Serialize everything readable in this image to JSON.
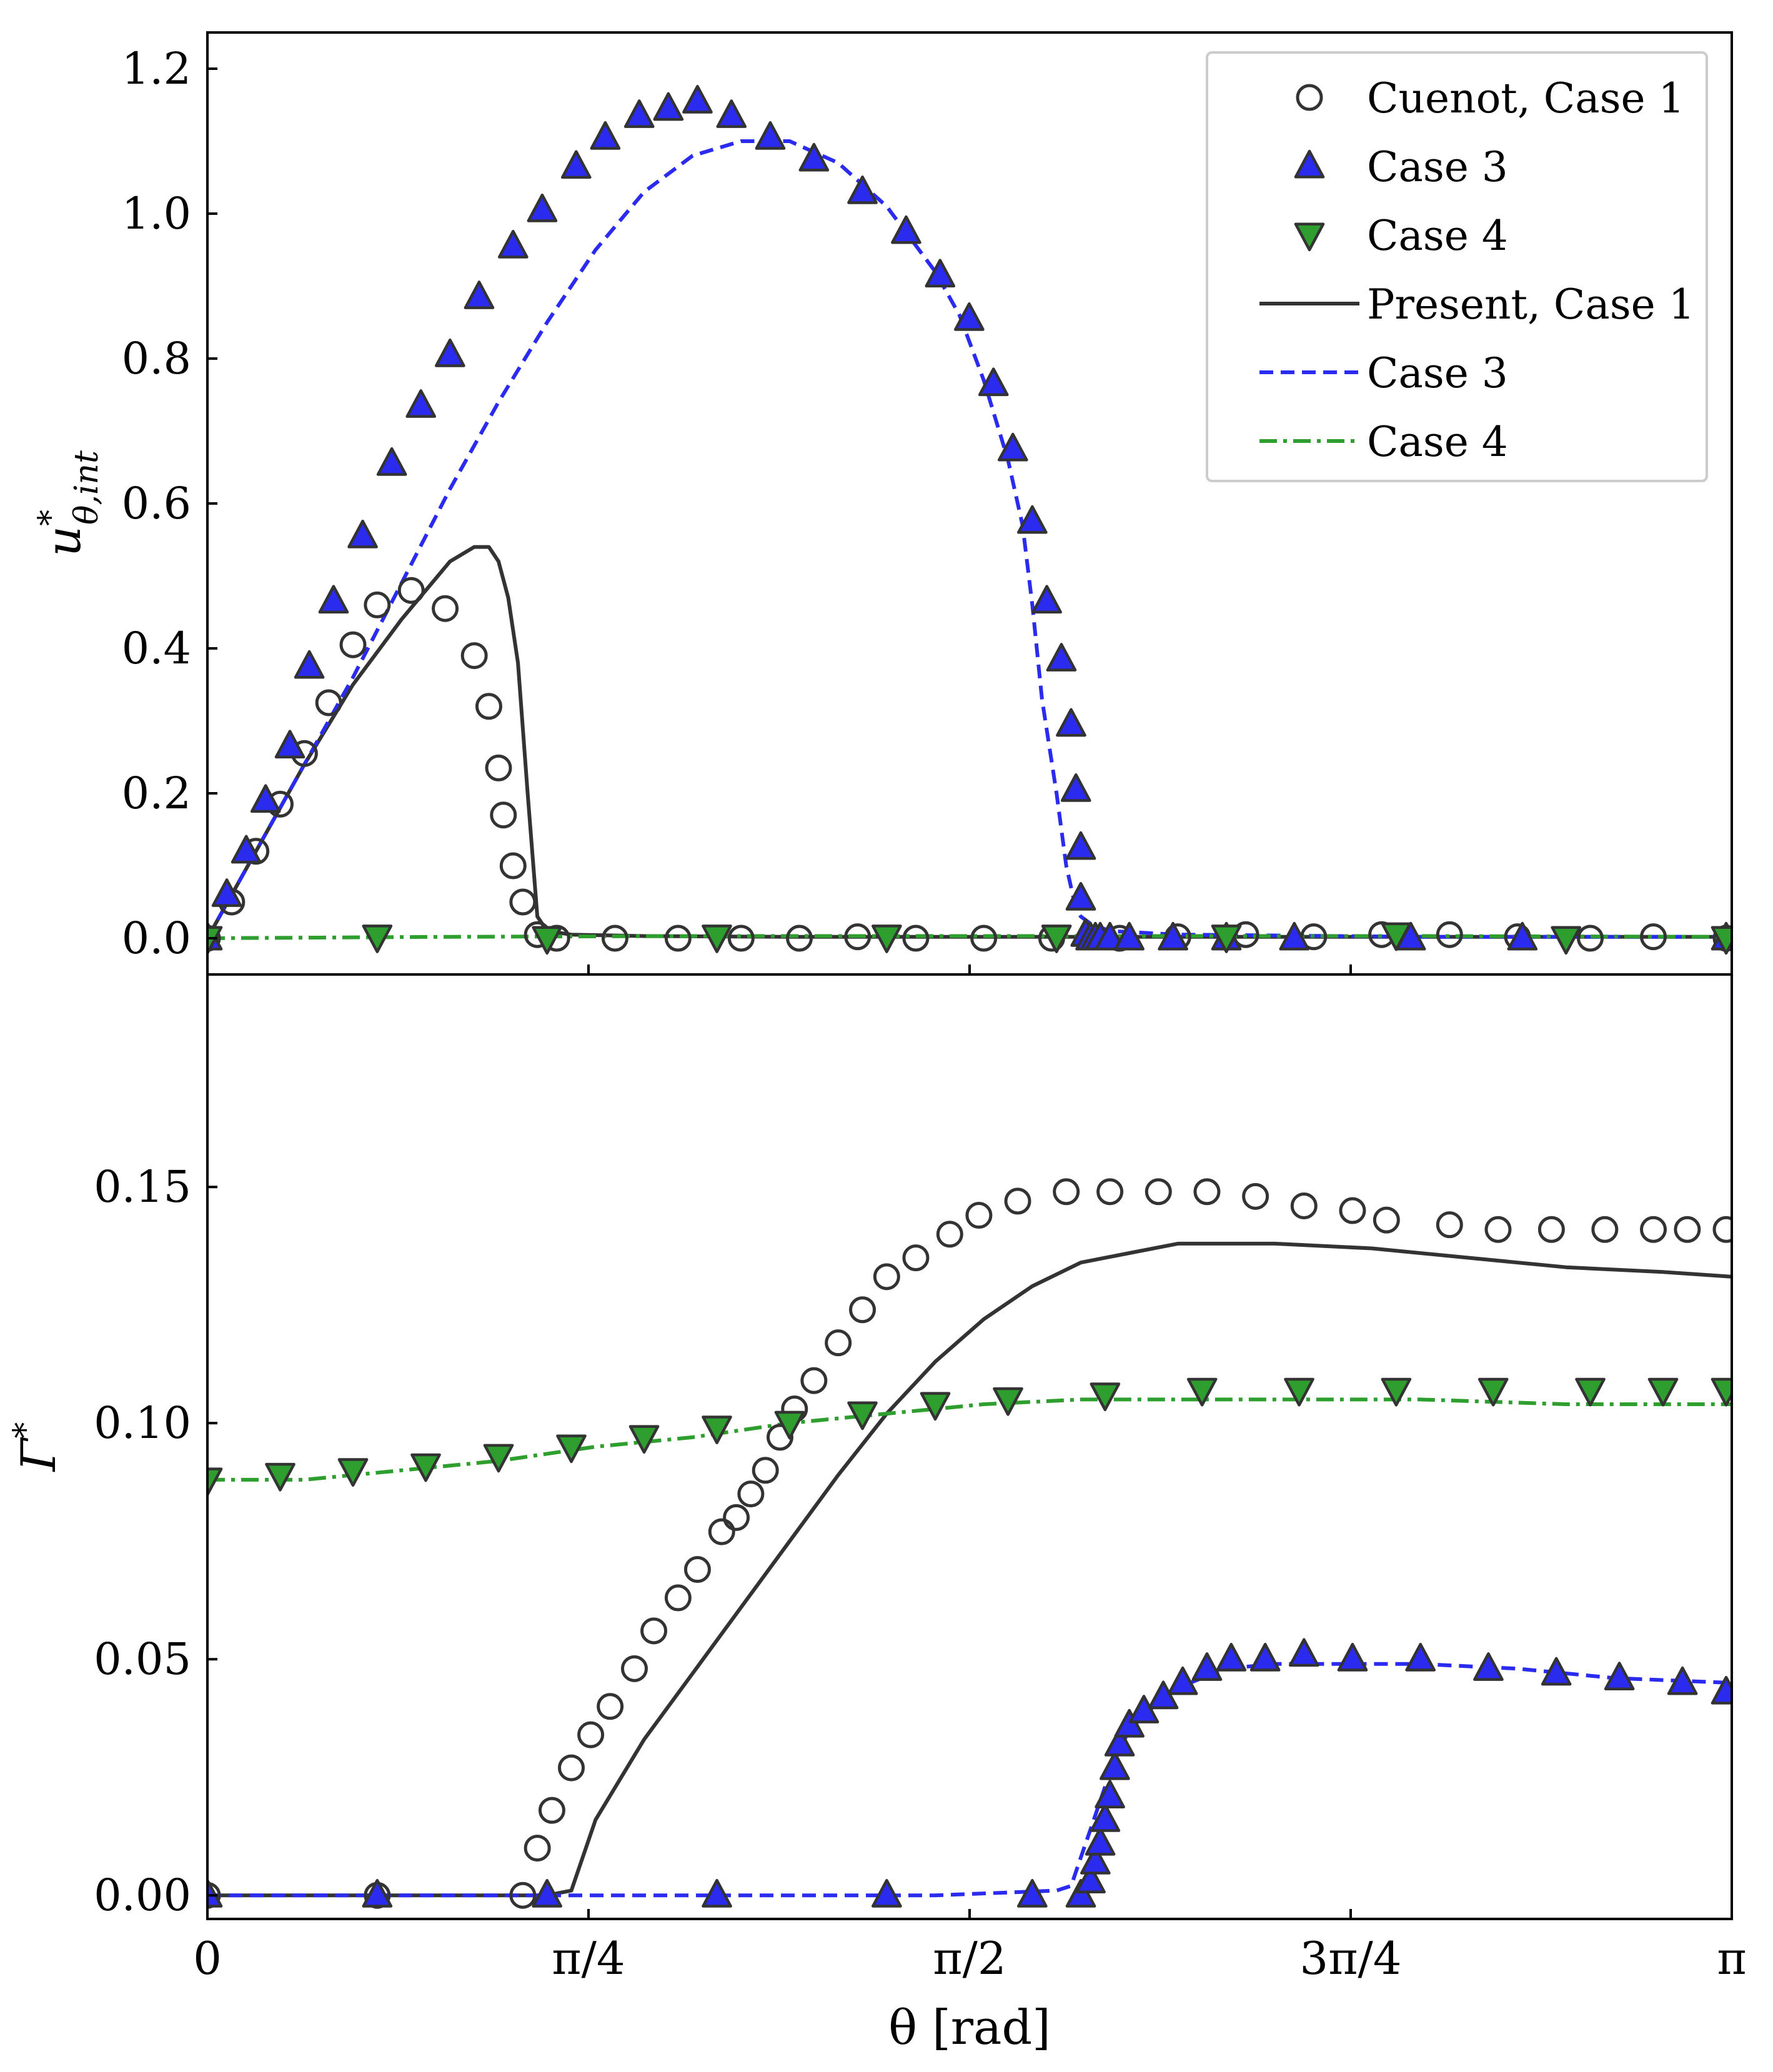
{
  "chart_data": [
    {
      "type": "line",
      "panel": "top",
      "ylabel": "u*_{θ,int}",
      "ylabel_base": "u",
      "ylabel_sup": "*",
      "ylabel_sub": "θ,int",
      "xlim": [
        0,
        3.14159
      ],
      "ylim": [
        -0.05,
        1.25
      ],
      "yticks": [
        0.0,
        0.2,
        0.4,
        0.6,
        0.8,
        1.0,
        1.2
      ],
      "ytick_labels": [
        "0.0",
        "0.2",
        "0.4",
        "0.6",
        "0.8",
        "1.0",
        "1.2"
      ],
      "legend_position": "top-right",
      "legend": [
        {
          "label": "Cuenot, Case 1",
          "marker": "circle"
        },
        {
          "label": "Case 3",
          "marker": "triangle-up"
        },
        {
          "label": "Case 4",
          "marker": "triangle-down"
        },
        {
          "label": "Present, Case 1",
          "line": "solid"
        },
        {
          "label": "Case 3",
          "line": "dashed"
        },
        {
          "label": "Case 4",
          "line": "dashdot"
        }
      ],
      "series": [
        {
          "name": "Cuenot, Case 1",
          "kind": "markers",
          "marker": "circle",
          "x": [
            0.0,
            0.05,
            0.1,
            0.15,
            0.2,
            0.25,
            0.3,
            0.35,
            0.42,
            0.49,
            0.55,
            0.58,
            0.6,
            0.61,
            0.63,
            0.65,
            0.68,
            0.72,
            0.84,
            0.97,
            1.1,
            1.22,
            1.34,
            1.46,
            1.6,
            1.74,
            1.88,
            2.0,
            2.14,
            2.28,
            2.42,
            2.56,
            2.7,
            2.85,
            2.98,
            3.13
          ],
          "y": [
            0.0,
            0.05,
            0.12,
            0.185,
            0.255,
            0.325,
            0.405,
            0.46,
            0.48,
            0.455,
            0.39,
            0.32,
            0.235,
            0.17,
            0.1,
            0.05,
            0.005,
            0.0,
            0.0,
            0.0,
            0.0,
            0.0,
            0.002,
            0.0,
            0.0,
            0.0,
            0.0,
            0.002,
            0.005,
            0.002,
            0.005,
            0.005,
            0.002,
            0.0,
            0.002,
            0.0
          ]
        },
        {
          "name": "Case 3",
          "kind": "markers",
          "marker": "triangle-up",
          "x": [
            0.0,
            0.04,
            0.08,
            0.12,
            0.17,
            0.21,
            0.26,
            0.32,
            0.38,
            0.44,
            0.5,
            0.56,
            0.63,
            0.69,
            0.76,
            0.82,
            0.89,
            0.95,
            1.01,
            1.08,
            1.16,
            1.25,
            1.35,
            1.44,
            1.51,
            1.57,
            1.62,
            1.66,
            1.7,
            1.73,
            1.76,
            1.78,
            1.79,
            1.8,
            1.8,
            1.81,
            1.82,
            1.83,
            1.84,
            1.86,
            1.9,
            1.99,
            2.1,
            2.24,
            2.48,
            2.71,
            3.13
          ],
          "y": [
            0.0,
            0.06,
            0.12,
            0.19,
            0.265,
            0.375,
            0.465,
            0.555,
            0.655,
            0.735,
            0.805,
            0.885,
            0.955,
            1.005,
            1.065,
            1.105,
            1.135,
            1.145,
            1.155,
            1.135,
            1.105,
            1.075,
            1.03,
            0.975,
            0.915,
            0.855,
            0.765,
            0.675,
            0.575,
            0.465,
            0.385,
            0.295,
            0.205,
            0.125,
            0.055,
            0.005,
            0.0,
            0.0,
            0.0,
            0.0,
            0.0,
            0.0,
            0.0,
            0.0,
            0.0,
            0.0,
            0.0
          ]
        },
        {
          "name": "Case 4",
          "kind": "markers",
          "marker": "triangle-down",
          "x": [
            0.0,
            0.35,
            0.7,
            1.05,
            1.4,
            1.75,
            2.1,
            2.45,
            2.8,
            3.13
          ],
          "y": [
            0.0,
            0.002,
            0.0,
            0.002,
            0.002,
            0.002,
            0.002,
            0.005,
            0.0,
            0.0
          ]
        },
        {
          "name": "Present, Case 1",
          "kind": "line",
          "line": "solid",
          "x": [
            0.0,
            0.1,
            0.2,
            0.3,
            0.4,
            0.5,
            0.55,
            0.58,
            0.6,
            0.62,
            0.64,
            0.66,
            0.68,
            0.7,
            0.75,
            0.9,
            1.2,
            1.5,
            1.8,
            2.2,
            2.6,
            3.14
          ],
          "y": [
            0.0,
            0.12,
            0.24,
            0.35,
            0.44,
            0.52,
            0.54,
            0.54,
            0.52,
            0.47,
            0.38,
            0.2,
            0.03,
            0.01,
            0.005,
            0.003,
            0.002,
            0.002,
            0.002,
            0.002,
            0.002,
            0.002
          ]
        },
        {
          "name": "Case 3",
          "kind": "line",
          "line": "dashed",
          "x": [
            0.0,
            0.1,
            0.2,
            0.3,
            0.4,
            0.5,
            0.6,
            0.7,
            0.8,
            0.9,
            1.0,
            1.1,
            1.2,
            1.3,
            1.4,
            1.5,
            1.55,
            1.6,
            1.65,
            1.68,
            1.7,
            1.72,
            1.75,
            1.77,
            1.79,
            1.8,
            1.82,
            1.86,
            2.0,
            2.5,
            3.14
          ],
          "y": [
            0.0,
            0.12,
            0.24,
            0.36,
            0.49,
            0.62,
            0.74,
            0.85,
            0.95,
            1.03,
            1.08,
            1.1,
            1.1,
            1.07,
            1.01,
            0.92,
            0.86,
            0.77,
            0.66,
            0.57,
            0.46,
            0.33,
            0.2,
            0.1,
            0.04,
            0.03,
            0.02,
            0.01,
            0.005,
            0.002,
            0.002
          ]
        },
        {
          "name": "Case 4",
          "kind": "line",
          "line": "dashdot",
          "x": [
            0.0,
            0.5,
            1.0,
            1.5,
            2.0,
            2.5,
            3.14
          ],
          "y": [
            0.0,
            0.002,
            0.003,
            0.003,
            0.003,
            0.003,
            0.002
          ]
        }
      ]
    },
    {
      "type": "line",
      "panel": "bottom",
      "ylabel": "Γ*",
      "ylabel_base": "Γ",
      "ylabel_sup": "*",
      "ylabel_sub": "",
      "xlabel": "θ [rad]",
      "xlim": [
        0,
        3.14159
      ],
      "ylim": [
        -0.005,
        0.195
      ],
      "yticks": [
        0.0,
        0.05,
        0.1,
        0.15
      ],
      "ytick_labels": [
        "0.00",
        "0.05",
        "0.10",
        "0.15"
      ],
      "xticks": [
        0,
        0.7854,
        1.5708,
        2.3562,
        3.14159
      ],
      "xtick_labels": [
        "0",
        "π/4",
        "π/2",
        "3π/4",
        "π"
      ],
      "series": [
        {
          "name": "Cuenot, Case 1",
          "kind": "markers",
          "marker": "circle",
          "x": [
            0.0,
            0.35,
            0.65,
            0.68,
            0.71,
            0.75,
            0.79,
            0.83,
            0.88,
            0.92,
            0.97,
            1.01,
            1.06,
            1.09,
            1.12,
            1.15,
            1.18,
            1.21,
            1.25,
            1.3,
            1.35,
            1.4,
            1.46,
            1.53,
            1.59,
            1.67,
            1.77,
            1.86,
            1.96,
            2.06,
            2.16,
            2.26,
            2.36,
            2.43,
            2.56,
            2.66,
            2.77,
            2.88,
            2.98,
            3.05,
            3.13
          ],
          "y": [
            0.0,
            0.0,
            0.0,
            0.01,
            0.018,
            0.027,
            0.034,
            0.04,
            0.048,
            0.056,
            0.063,
            0.069,
            0.077,
            0.08,
            0.085,
            0.09,
            0.097,
            0.103,
            0.109,
            0.117,
            0.124,
            0.131,
            0.135,
            0.14,
            0.144,
            0.147,
            0.149,
            0.149,
            0.149,
            0.149,
            0.148,
            0.146,
            0.145,
            0.143,
            0.142,
            0.141,
            0.141,
            0.141,
            0.141,
            0.141,
            0.141
          ]
        },
        {
          "name": "Case 3",
          "kind": "markers",
          "marker": "triangle-up",
          "x": [
            0.0,
            0.35,
            0.7,
            1.05,
            1.4,
            1.7,
            1.8,
            1.82,
            1.83,
            1.84,
            1.85,
            1.86,
            1.87,
            1.88,
            1.9,
            1.93,
            1.97,
            2.01,
            2.06,
            2.11,
            2.18,
            2.26,
            2.36,
            2.5,
            2.64,
            2.78,
            2.91,
            3.04,
            3.13
          ],
          "y": [
            0.0,
            0.0,
            0.0,
            0.0,
            0.0,
            0.0,
            0.0,
            0.003,
            0.007,
            0.011,
            0.016,
            0.021,
            0.027,
            0.032,
            0.036,
            0.039,
            0.042,
            0.045,
            0.048,
            0.05,
            0.05,
            0.051,
            0.05,
            0.05,
            0.048,
            0.047,
            0.046,
            0.045,
            0.043
          ]
        },
        {
          "name": "Case 4",
          "kind": "markers",
          "marker": "triangle-down",
          "x": [
            0.0,
            0.15,
            0.3,
            0.45,
            0.6,
            0.75,
            0.9,
            1.05,
            1.2,
            1.35,
            1.5,
            1.65,
            1.85,
            2.05,
            2.25,
            2.45,
            2.65,
            2.85,
            3.0,
            3.13
          ],
          "y": [
            0.088,
            0.089,
            0.09,
            0.091,
            0.093,
            0.095,
            0.097,
            0.099,
            0.1,
            0.102,
            0.104,
            0.105,
            0.106,
            0.107,
            0.107,
            0.107,
            0.107,
            0.107,
            0.107,
            0.107
          ]
        },
        {
          "name": "Present, Case 1",
          "kind": "line",
          "line": "solid",
          "x": [
            0.0,
            0.65,
            0.7,
            0.75,
            0.8,
            0.9,
            1.0,
            1.1,
            1.2,
            1.3,
            1.4,
            1.5,
            1.6,
            1.7,
            1.8,
            1.9,
            2.0,
            2.2,
            2.4,
            2.6,
            2.8,
            3.0,
            3.14
          ],
          "y": [
            0.0,
            0.0,
            0.0,
            0.001,
            0.016,
            0.033,
            0.047,
            0.061,
            0.075,
            0.089,
            0.102,
            0.113,
            0.122,
            0.129,
            0.134,
            0.136,
            0.138,
            0.138,
            0.137,
            0.135,
            0.133,
            0.132,
            0.131
          ]
        },
        {
          "name": "Case 3",
          "kind": "line",
          "line": "dashed",
          "x": [
            0.0,
            1.0,
            1.5,
            1.75,
            1.78,
            1.8,
            1.82,
            1.84,
            1.86,
            1.88,
            1.9,
            1.95,
            2.0,
            2.1,
            2.2,
            2.3,
            2.4,
            2.5,
            2.7,
            2.9,
            3.14
          ],
          "y": [
            0.0,
            0.0,
            0.0,
            0.001,
            0.002,
            0.008,
            0.014,
            0.02,
            0.026,
            0.031,
            0.035,
            0.04,
            0.044,
            0.048,
            0.049,
            0.049,
            0.049,
            0.049,
            0.048,
            0.046,
            0.045
          ]
        },
        {
          "name": "Case 4",
          "kind": "line",
          "line": "dashdot",
          "x": [
            0.0,
            0.2,
            0.4,
            0.6,
            0.8,
            1.0,
            1.2,
            1.4,
            1.6,
            1.8,
            2.0,
            2.2,
            2.5,
            2.8,
            3.14
          ],
          "y": [
            0.088,
            0.088,
            0.09,
            0.092,
            0.095,
            0.097,
            0.1,
            0.102,
            0.104,
            0.105,
            0.105,
            0.105,
            0.105,
            0.104,
            0.104
          ]
        }
      ]
    }
  ],
  "colors": {
    "black": "#333333",
    "blue": "#2b2bf0",
    "green": "#2e9e2e",
    "axis": "#000000"
  }
}
